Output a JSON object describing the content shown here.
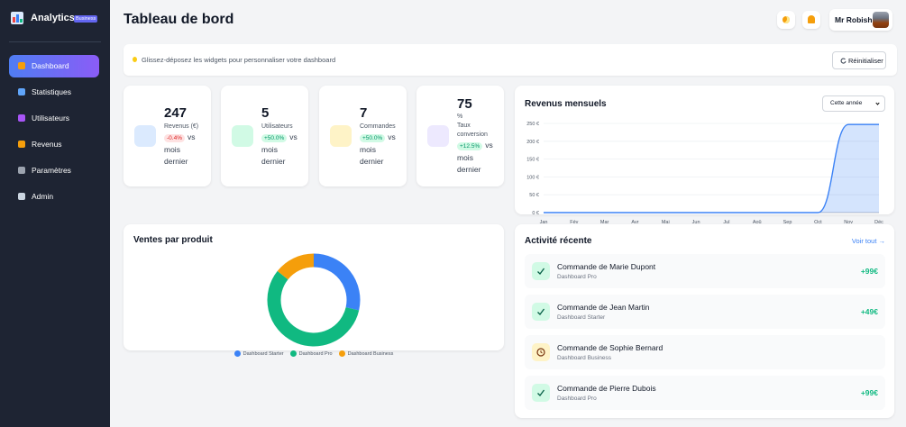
{
  "sidebar": {
    "brand": "Analytics",
    "badge": "Business",
    "nav": [
      "Dashboard",
      "Statistiques",
      "Utilisateurs",
      "Revenus",
      "Paramètres",
      "Admin"
    ],
    "active": 0
  },
  "header": {
    "title": "Tableau de bord",
    "user": "Mr Robish"
  },
  "banner": {
    "text": "Glissez-déposez les widgets pour personnaliser votre dashboard",
    "button": "Réinitialiser"
  },
  "stats": [
    {
      "value": 247,
      "label": "Revenus (€)",
      "change": "-0.4%",
      "trend": "down",
      "suffix": "vs mois dernier",
      "color": "#dbeafe"
    },
    {
      "value": 5,
      "label": "Utilisateurs",
      "change": "+50.0%",
      "trend": "up",
      "suffix": "vs mois dernier",
      "color": "#d1fae5"
    },
    {
      "value": 7,
      "label": "Commandes",
      "change": "+50.0%",
      "trend": "up",
      "suffix": "vs mois dernier",
      "color": "#fef3c7"
    },
    {
      "value": 75,
      "unit": "%",
      "label": "Taux conversion",
      "change": "+12.5%",
      "trend": "up",
      "suffix": "vs mois dernier",
      "color": "#ede9fe"
    }
  ],
  "chart_data": [
    {
      "type": "line",
      "title": "Revenus mensuels",
      "control": "Cette année",
      "categories": [
        "Jan",
        "Fév",
        "Mar",
        "Avr",
        "Mai",
        "Jun",
        "Jul",
        "Aoû",
        "Sep",
        "Oct",
        "Nov",
        "Déc"
      ],
      "values": [
        0,
        0,
        0,
        0,
        0,
        0,
        0,
        0,
        0,
        0,
        247,
        247
      ],
      "color": "#3b82f6",
      "ylim": [
        0,
        250
      ],
      "yticks": [
        {
          "value": 0,
          "label": "0 €"
        },
        {
          "value": 50,
          "label": "50 €"
        },
        {
          "value": 100,
          "label": "100 €"
        },
        {
          "value": 150,
          "label": "150 €"
        },
        {
          "value": 200,
          "label": "200 €"
        },
        {
          "value": 250,
          "label": "250 €"
        }
      ],
      "grid": true
    },
    {
      "type": "donut",
      "title": "Ventes par produit",
      "categories": [
        "Dashboard Starter",
        "Dashboard Pro",
        "Dashboard Business"
      ],
      "values": [
        2,
        4,
        1
      ],
      "colors": [
        "#3b82f6",
        "#10b981",
        "#f59e0b"
      ]
    }
  ],
  "activity": {
    "title": "Activité récente",
    "link": "Voir tout →",
    "items": [
      {
        "title": "Commande de Marie Dupont",
        "subtitle": "Dashboard Pro",
        "amount": "+99€",
        "status": "done"
      },
      {
        "title": "Commande de Jean Martin",
        "subtitle": "Dashboard Starter",
        "amount": "+49€",
        "status": "done"
      },
      {
        "title": "Commande de Sophie Bernard",
        "subtitle": "Dashboard Business",
        "status": "pending"
      },
      {
        "title": "Commande de Pierre Dubois",
        "subtitle": "Dashboard Pro",
        "amount": "+99€",
        "status": "done"
      }
    ]
  }
}
